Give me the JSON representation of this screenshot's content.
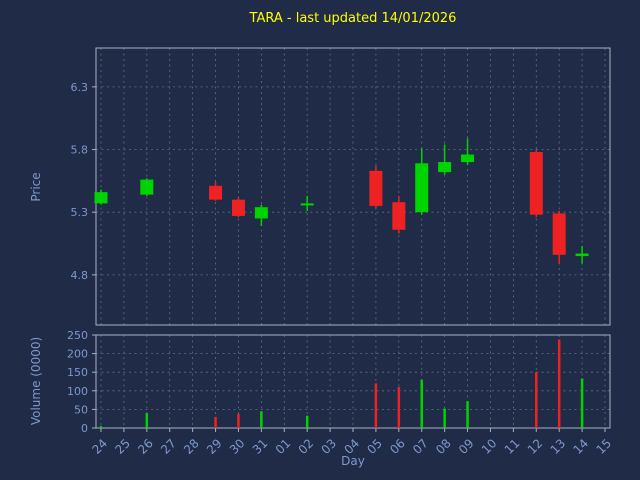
{
  "title": "TARA - last updated 14/01/2026",
  "colors": {
    "background": "#1f2b47",
    "title": "#ffff00",
    "axis_text": "#7f98cc",
    "spine": "#a8b0c0",
    "grid": "#8a919c",
    "up": "#00d400",
    "down": "#ee2222"
  },
  "chart_data": {
    "type": "candlestick",
    "title": "TARA - last updated 14/01/2026",
    "xlabel": "Day",
    "x_labels": [
      "24",
      "25",
      "26",
      "27",
      "28",
      "29",
      "30",
      "31",
      "01",
      "02",
      "03",
      "04",
      "05",
      "06",
      "07",
      "08",
      "09",
      "10",
      "11",
      "12",
      "13",
      "14",
      "15"
    ],
    "price_axis": {
      "label": "Price",
      "ticks": [
        6.3,
        5.8,
        5.3,
        4.8
      ],
      "range": [
        4.4,
        6.61
      ],
      "grid": "dashed"
    },
    "volume_axis": {
      "label": "Volume (0000)",
      "ticks": [
        250,
        200,
        150,
        100,
        50,
        0
      ],
      "range": [
        0,
        250
      ],
      "grid": "dashed"
    },
    "candles": [
      {
        "day": "24",
        "open": 5.37,
        "high": 5.48,
        "low": 5.36,
        "close": 5.46,
        "volume": 5
      },
      {
        "day": "26",
        "open": 5.44,
        "high": 5.57,
        "low": 5.43,
        "close": 5.56,
        "volume": 40
      },
      {
        "day": "29",
        "open": 5.51,
        "high": 5.54,
        "low": 5.39,
        "close": 5.4,
        "volume": 30
      },
      {
        "day": "30",
        "open": 5.4,
        "high": 5.42,
        "low": 5.26,
        "close": 5.27,
        "volume": 38
      },
      {
        "day": "31",
        "open": 5.25,
        "high": 5.36,
        "low": 5.19,
        "close": 5.34,
        "volume": 45
      },
      {
        "day": "02",
        "open": 5.36,
        "high": 5.43,
        "low": 5.31,
        "close": 5.37,
        "volume": 33
      },
      {
        "day": "05",
        "open": 5.63,
        "high": 5.67,
        "low": 5.33,
        "close": 5.35,
        "volume": 120
      },
      {
        "day": "06",
        "open": 5.38,
        "high": 5.43,
        "low": 5.13,
        "close": 5.16,
        "volume": 110
      },
      {
        "day": "07",
        "open": 5.3,
        "high": 5.81,
        "low": 5.28,
        "close": 5.69,
        "volume": 130
      },
      {
        "day": "08",
        "open": 5.62,
        "high": 5.84,
        "low": 5.6,
        "close": 5.7,
        "volume": 52
      },
      {
        "day": "09",
        "open": 5.7,
        "high": 5.89,
        "low": 5.68,
        "close": 5.76,
        "volume": 72
      },
      {
        "day": "12",
        "open": 5.78,
        "high": 5.8,
        "low": 5.26,
        "close": 5.28,
        "volume": 150
      },
      {
        "day": "13",
        "open": 5.29,
        "high": 5.31,
        "low": 4.89,
        "close": 4.96,
        "volume": 238
      },
      {
        "day": "14",
        "open": 4.95,
        "high": 5.03,
        "low": 4.89,
        "close": 4.97,
        "volume": 133
      }
    ]
  }
}
